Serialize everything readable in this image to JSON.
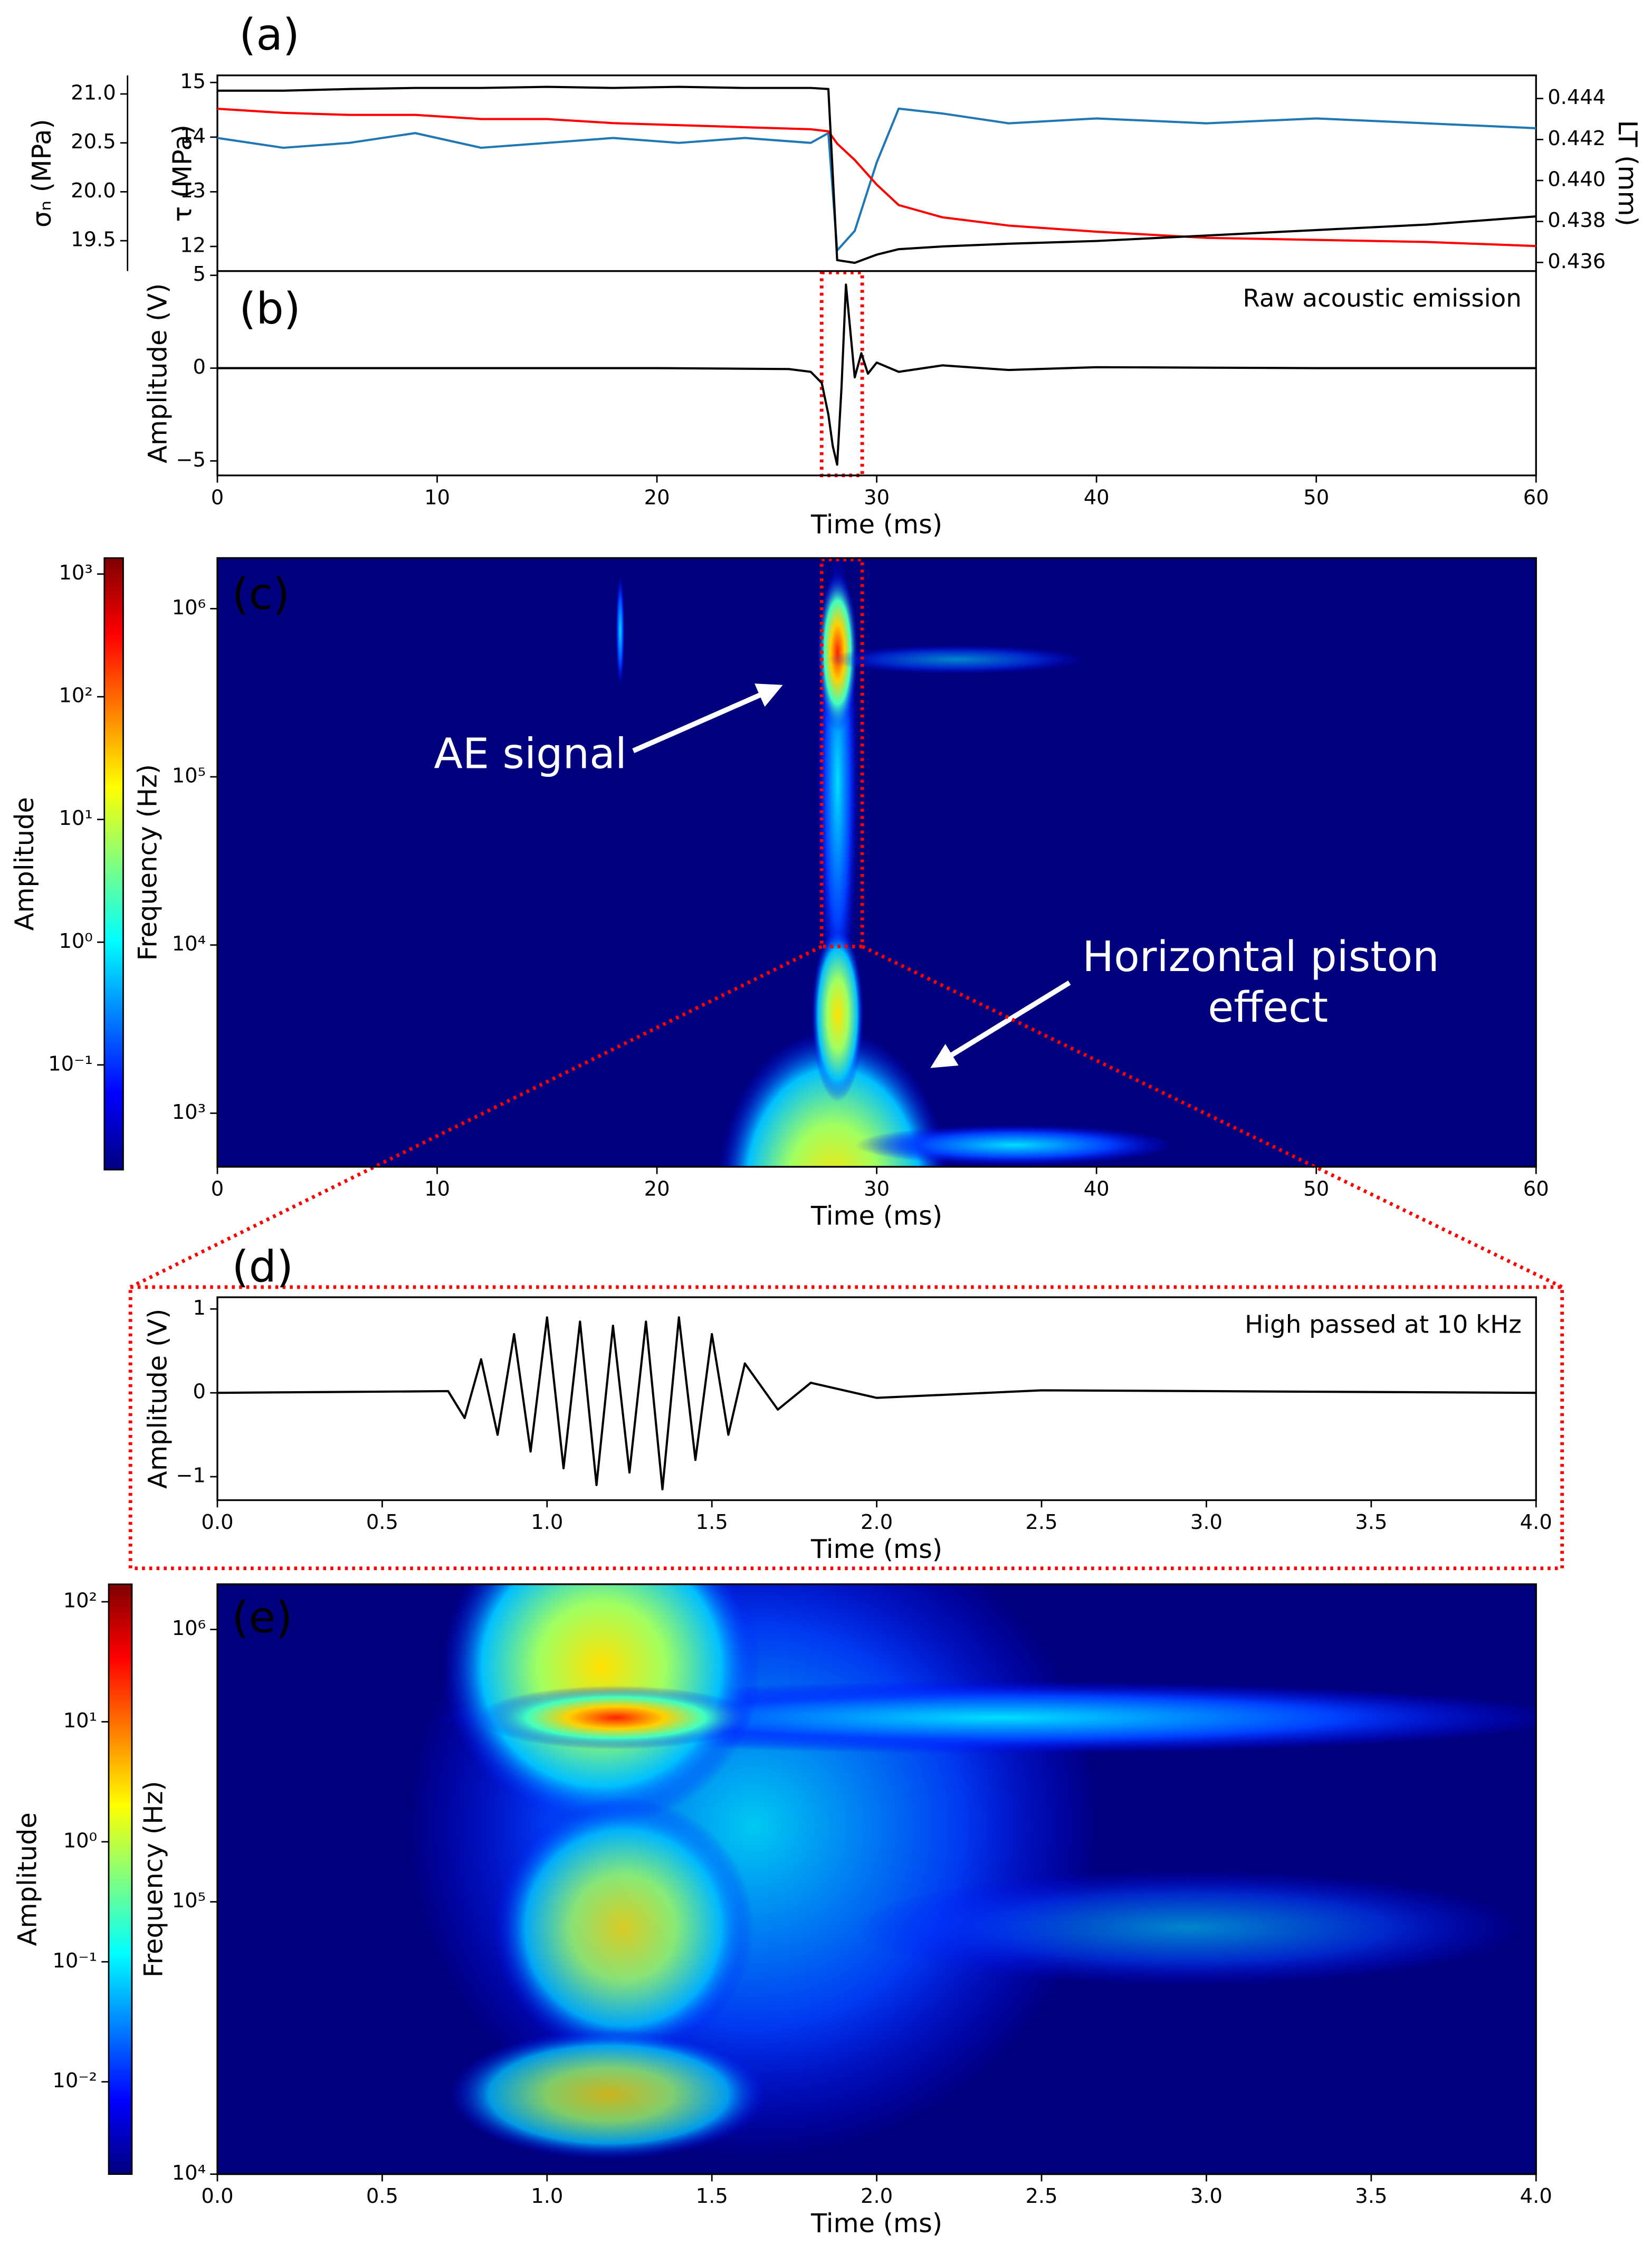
{
  "chart_data": [
    {
      "type": "line",
      "label": "(a)",
      "x": [
        0,
        3,
        6,
        9,
        12,
        15,
        18,
        21,
        24,
        27,
        27.8,
        28.2,
        29,
        30,
        31,
        33,
        36,
        40,
        45,
        50,
        55,
        60
      ],
      "xlim": [
        0,
        60
      ],
      "ylim": [
        11.55,
        15.13
      ],
      "yticks": [
        12,
        13,
        14,
        15
      ],
      "ylabel": "τ (MPa)",
      "y2lim": [
        0.43558,
        0.44513
      ],
      "y2ticks": [
        0.436,
        0.438,
        {
          "value": 0.44,
          "label": "0.440"
        },
        0.442,
        0.444
      ],
      "y2label": "LT (mm)",
      "y2color": "#ff0000",
      "y3lim": [
        19.19,
        21.19
      ],
      "y3ticks": [
        19.5,
        {
          "value": 20,
          "label": "20.0"
        },
        20.5,
        {
          "value": 21,
          "label": "21.0"
        }
      ],
      "y3label": "σₙ (MPa)",
      "y3color": "#1f77b4",
      "series": [
        {
          "color": "#1f77b4",
          "axis": "y3",
          "values": [
            20.55,
            20.45,
            20.5,
            20.6,
            20.45,
            20.5,
            20.55,
            20.5,
            20.55,
            20.5,
            20.6,
            19.4,
            19.6,
            20.3,
            20.85,
            20.8,
            20.7,
            20.75,
            20.7,
            20.75,
            20.7,
            20.65
          ]
        },
        {
          "color": "#ff0000",
          "axis": "y2",
          "values": [
            0.4435,
            0.4433,
            0.4432,
            0.4432,
            0.443,
            0.443,
            0.4428,
            0.4427,
            0.4426,
            0.4425,
            0.4424,
            0.4418,
            0.441,
            0.4398,
            0.4388,
            0.4382,
            0.4378,
            0.4375,
            0.4372,
            0.4371,
            0.437,
            0.4368
          ]
        },
        {
          "color": "#000000",
          "values": [
            14.85,
            14.85,
            14.88,
            14.9,
            14.9,
            14.92,
            14.9,
            14.92,
            14.9,
            14.9,
            14.88,
            11.75,
            11.7,
            11.85,
            11.95,
            12.0,
            12.05,
            12.1,
            12.2,
            12.3,
            12.4,
            12.55
          ]
        }
      ]
    },
    {
      "type": "line",
      "label": "(b)",
      "annotation": "Raw acoustic emission",
      "x": [
        0,
        10,
        20,
        26,
        27,
        27.5,
        27.8,
        28,
        28.2,
        28.4,
        28.6,
        28.8,
        29,
        29.3,
        29.6,
        30,
        31,
        33,
        36,
        40,
        50,
        60
      ],
      "xlim": [
        0,
        60
      ],
      "xticks": [
        0,
        10,
        20,
        30,
        40,
        50,
        60
      ],
      "xlabel": "Time (ms)",
      "ylim": [
        -5.78,
        5.23
      ],
      "yticks": [
        {
          "value": -5,
          "label": "−5"
        },
        0,
        5
      ],
      "ylabel": "Amplitude (V)",
      "series": [
        {
          "color": "#000000",
          "values": [
            0,
            0,
            0,
            -0.05,
            -0.2,
            -0.8,
            -2.5,
            -4.2,
            -5.2,
            -1,
            4.5,
            2,
            -0.5,
            0.8,
            -0.3,
            0.3,
            -0.2,
            0.15,
            -0.1,
            0.05,
            0,
            0
          ]
        }
      ]
    },
    {
      "type": "spectrogram",
      "label": "(c)",
      "xlim": [
        0,
        60
      ],
      "xticks": [
        0,
        10,
        20,
        30,
        40,
        50,
        60
      ],
      "xlabel": "Time (ms)",
      "log_y": true,
      "ylim": [
        480,
        2000000
      ],
      "yticks": [
        {
          "value": 1000,
          "label": "10³"
        },
        {
          "value": 10000,
          "label": "10⁴"
        },
        {
          "value": 100000,
          "label": "10⁵"
        },
        {
          "value": 1000000,
          "label": "10⁶"
        }
      ],
      "ylabel": "Frequency (Hz)",
      "colorbar": {
        "label": "Amplitude",
        "log": true,
        "lim": [
          0.014,
          1350
        ],
        "ticks": [
          {
            "value": 0.1,
            "label": "10⁻¹"
          },
          {
            "value": 1,
            "label": "10⁰"
          },
          {
            "value": 10,
            "label": "10¹"
          },
          {
            "value": 100,
            "label": "10²"
          },
          {
            "value": 1000,
            "label": "10³"
          }
        ]
      },
      "annotations": [
        "AE signal",
        "Horizontal piston",
        "effect"
      ]
    },
    {
      "type": "line",
      "label": "(d)",
      "annotation": "High passed at 10 kHz",
      "x": [
        0,
        0.7,
        0.75,
        0.8,
        0.85,
        0.9,
        0.95,
        1.0,
        1.05,
        1.1,
        1.15,
        1.2,
        1.25,
        1.3,
        1.35,
        1.4,
        1.45,
        1.5,
        1.55,
        1.6,
        1.7,
        1.8,
        2.0,
        2.5,
        3.0,
        4.0
      ],
      "xlim": [
        0,
        4
      ],
      "xticks": [
        {
          "value": 0,
          "label": "0.0"
        },
        0.5,
        {
          "value": 1,
          "label": "1.0"
        },
        1.5,
        {
          "value": 2,
          "label": "2.0"
        },
        2.5,
        {
          "value": 3,
          "label": "3.0"
        },
        3.5,
        {
          "value": 4,
          "label": "4.0"
        }
      ],
      "xlabel": "Time (ms)",
      "ylim": [
        -1.28,
        1.14
      ],
      "yticks": [
        {
          "value": -1,
          "label": "−1"
        },
        0,
        1
      ],
      "ylabel": "Amplitude (V)",
      "series": [
        {
          "color": "#000000",
          "values": [
            0,
            0.02,
            -0.3,
            0.4,
            -0.5,
            0.7,
            -0.7,
            0.9,
            -0.9,
            0.85,
            -1.1,
            0.8,
            -0.95,
            0.85,
            -1.15,
            0.9,
            -0.8,
            0.7,
            -0.5,
            0.35,
            -0.2,
            0.12,
            -0.06,
            0.03,
            0.02,
            0
          ]
        }
      ]
    },
    {
      "type": "spectrogram",
      "label": "(e)",
      "xlim": [
        0,
        4
      ],
      "xticks": [
        {
          "value": 0,
          "label": "0.0"
        },
        0.5,
        {
          "value": 1,
          "label": "1.0"
        },
        1.5,
        {
          "value": 2,
          "label": "2.0"
        },
        2.5,
        {
          "value": 3,
          "label": "3.0"
        },
        3.5,
        {
          "value": 4,
          "label": "4.0"
        }
      ],
      "xlabel": "Time (ms)",
      "log_y": true,
      "ylim": [
        10000,
        1466000
      ],
      "yticks": [
        {
          "value": 10000,
          "label": "10⁴"
        },
        {
          "value": 100000,
          "label": "10⁵"
        },
        {
          "value": 1000000,
          "label": "10⁶"
        }
      ],
      "ylabel": "Frequency (Hz)",
      "colorbar": {
        "label": "Amplitude",
        "log": true,
        "lim": [
          0.0017,
          140
        ],
        "ticks": [
          {
            "value": 0.01,
            "label": "10⁻²"
          },
          {
            "value": 0.1,
            "label": "10⁻¹"
          },
          {
            "value": 1,
            "label": "10⁰"
          },
          {
            "value": 10,
            "label": "10¹"
          },
          {
            "value": 100,
            "label": "10²"
          }
        ]
      }
    }
  ]
}
